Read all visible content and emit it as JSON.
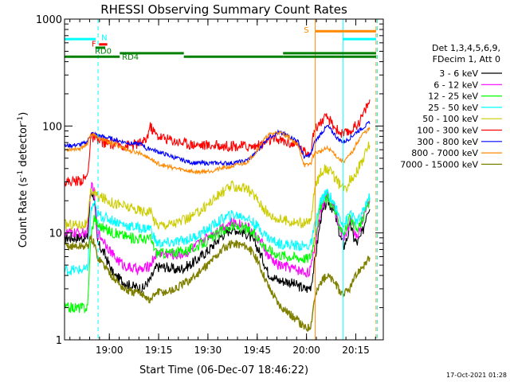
{
  "chart_data": {
    "type": "line",
    "title": "RHESSI Observing Summary Count Rates",
    "ylabel_main": "Count Rate (s",
    "ylabel_sup1": "-1",
    "ylabel_mid": " detector",
    "ylabel_sup2": "-1",
    "ylabel_end": ")",
    "xlabel": "Start Time (06-Dec-07 18:46:22)",
    "timestamp": "17-Oct-2021 01:28",
    "yscale": "log",
    "ylim": [
      1,
      1000
    ],
    "xlim_minutes": [
      0,
      97
    ],
    "x_ticks": [
      {
        "m": 13.63,
        "label": "19:00"
      },
      {
        "m": 28.63,
        "label": "19:15"
      },
      {
        "m": 43.63,
        "label": "19:30"
      },
      {
        "m": 58.63,
        "label": "19:45"
      },
      {
        "m": 73.63,
        "label": "20:00"
      },
      {
        "m": 88.63,
        "label": "20:15"
      }
    ],
    "y_ticks": [
      {
        "v": 1,
        "label": "1"
      },
      {
        "v": 10,
        "label": "10"
      },
      {
        "v": 100,
        "label": "100"
      },
      {
        "v": 1000,
        "label": "1000"
      }
    ],
    "legend_header": [
      "Det 1,3,4,5,6,9,",
      "FDecim 1, Att 0"
    ],
    "series": [
      {
        "name": "3 - 6 keV",
        "color": "#000000",
        "x": [
          0,
          5,
          6,
          7,
          8,
          9,
          10,
          12,
          15,
          18,
          20,
          24,
          25,
          26,
          28,
          31,
          34,
          36,
          38,
          40,
          44,
          48,
          51,
          55,
          56,
          58,
          60,
          62,
          65,
          68,
          71,
          73,
          74,
          75,
          76,
          78,
          80,
          82,
          83,
          84,
          85,
          86,
          87,
          88,
          89,
          90,
          91,
          92,
          93
        ],
        "y": [
          9,
          9,
          9,
          9,
          25,
          22,
          8,
          6.5,
          4,
          3.5,
          3.2,
          3,
          3.4,
          3.6,
          4.8,
          4.8,
          4.5,
          4.7,
          5,
          5.5,
          7,
          9.5,
          11,
          10,
          9.5,
          8,
          6,
          4.2,
          3.6,
          3.5,
          3.2,
          3,
          3,
          3.2,
          5,
          14,
          20,
          16,
          12,
          9,
          7.5,
          9,
          12,
          9,
          8,
          9,
          11,
          16,
          18
        ]
      },
      {
        "name": "6 - 12 keV",
        "color": "#ff00ff",
        "x": [
          0,
          5,
          6,
          7,
          8,
          9,
          10,
          12,
          15,
          18,
          20,
          24,
          25,
          26,
          28,
          31,
          34,
          36,
          38,
          40,
          44,
          48,
          51,
          55,
          56,
          58,
          60,
          62,
          65,
          68,
          71,
          73,
          74,
          75,
          76,
          78,
          80,
          82,
          83,
          84,
          85,
          86,
          87,
          88,
          89,
          90,
          91,
          92,
          93
        ],
        "y": [
          10,
          10,
          10,
          10,
          28,
          24,
          10,
          8.5,
          6,
          5,
          4.7,
          4.5,
          4.8,
          5,
          6.5,
          6.4,
          6.2,
          6.4,
          6.7,
          7.5,
          9.5,
          11.5,
          12.5,
          11.8,
          11.2,
          9.5,
          8,
          6,
          5,
          4.8,
          4.5,
          4.3,
          4.3,
          4.6,
          7,
          17,
          23,
          18,
          13.5,
          10.5,
          9,
          10.5,
          13.5,
          10.5,
          9.5,
          11,
          14,
          18,
          20
        ]
      },
      {
        "name": "12 - 25 keV",
        "color": "#00ff00",
        "x": [
          0,
          5,
          6,
          7,
          8,
          9,
          10,
          12,
          15,
          18,
          20,
          24,
          25,
          26,
          28,
          31,
          34,
          36,
          38,
          40,
          44,
          48,
          51,
          55,
          56,
          58,
          60,
          62,
          65,
          68,
          71,
          73,
          74,
          75,
          76,
          78,
          80,
          82,
          83,
          84,
          85,
          86,
          87,
          88,
          89,
          90,
          91,
          92,
          93
        ],
        "y": [
          2,
          2,
          2,
          2,
          9,
          14,
          12,
          11,
          10,
          9.5,
          9,
          8.8,
          8.8,
          9,
          6.5,
          6.5,
          6.6,
          6.8,
          7,
          7.4,
          8.6,
          10.5,
          11.5,
          11,
          10.5,
          9.5,
          8.2,
          7,
          6.3,
          6.1,
          5.9,
          5.8,
          5.8,
          6.2,
          9,
          18,
          22,
          17,
          13.5,
          11.5,
          10,
          11.5,
          14,
          11.5,
          10.5,
          12,
          14,
          18,
          20
        ]
      },
      {
        "name": "25 - 50 keV",
        "color": "#00ffff",
        "x": [
          0,
          5,
          6,
          7,
          8,
          9,
          10,
          12,
          15,
          18,
          20,
          24,
          25,
          26,
          28,
          31,
          34,
          36,
          38,
          40,
          44,
          48,
          51,
          55,
          56,
          58,
          60,
          62,
          65,
          68,
          71,
          73,
          74,
          75,
          76,
          78,
          80,
          82,
          83,
          84,
          85,
          86,
          87,
          88,
          89,
          90,
          91,
          92,
          93
        ],
        "y": [
          4.5,
          4.5,
          4.5,
          4.5,
          16,
          19,
          15,
          14,
          13,
          12,
          11.5,
          11,
          11,
          11.2,
          8,
          8,
          8.2,
          8.5,
          8.8,
          9.3,
          11,
          13.5,
          14.8,
          14.2,
          13.5,
          12,
          10.5,
          9,
          8,
          7.8,
          7.6,
          7.5,
          7.5,
          7.8,
          11,
          20,
          24,
          19,
          15.5,
          13.5,
          12,
          13.5,
          16,
          13.5,
          12.5,
          14,
          16,
          20,
          22
        ]
      },
      {
        "name": "50 - 100 keV",
        "color": "#cccc00",
        "x": [
          0,
          5,
          6,
          7,
          8,
          9,
          10,
          12,
          15,
          18,
          20,
          24,
          25,
          26,
          28,
          31,
          34,
          36,
          38,
          40,
          44,
          48,
          51,
          55,
          56,
          58,
          60,
          62,
          65,
          68,
          71,
          73,
          74,
          75,
          76,
          78,
          80,
          82,
          83,
          84,
          85,
          86,
          87,
          88,
          89,
          90,
          91,
          92,
          93
        ],
        "y": [
          12,
          12,
          12,
          12,
          25,
          24,
          22,
          21,
          19,
          18,
          17,
          16,
          16,
          16.2,
          12,
          12,
          12.5,
          13,
          13.8,
          15,
          19,
          24,
          27.5,
          26,
          25,
          22,
          18,
          15,
          13.5,
          13,
          12.5,
          12.3,
          12.3,
          13,
          25,
          38,
          40,
          34,
          30,
          27.5,
          26,
          27.5,
          32,
          34,
          38,
          44,
          50,
          60,
          68
        ]
      },
      {
        "name": "100 - 300 keV",
        "color": "#ff0000",
        "x": [
          0,
          5,
          6,
          7,
          8,
          9,
          10,
          12,
          15,
          18,
          20,
          24,
          25,
          26,
          28,
          31,
          34,
          36,
          38,
          40,
          44,
          48,
          51,
          55,
          56,
          58,
          60,
          62,
          65,
          68,
          71,
          73,
          74,
          75,
          76,
          78,
          80,
          82,
          83,
          84,
          85,
          86,
          87,
          88,
          89,
          90,
          91,
          92,
          93
        ],
        "y": [
          30,
          31,
          32,
          34,
          80,
          76,
          72,
          70,
          67,
          66,
          66,
          70,
          76,
          100,
          82,
          76,
          72,
          70,
          68,
          67,
          66,
          65.5,
          65,
          65,
          64,
          65,
          67,
          73,
          75,
          70,
          66,
          57,
          57,
          59,
          93,
          110,
          120,
          100,
          92,
          86,
          84,
          86,
          90,
          96,
          104,
          115,
          130,
          155,
          170
        ]
      },
      {
        "name": "300 - 800 keV",
        "color": "#0000ff",
        "x": [
          0,
          5,
          6,
          7,
          8,
          9,
          10,
          12,
          15,
          18,
          20,
          24,
          25,
          26,
          28,
          31,
          34,
          36,
          38,
          40,
          44,
          48,
          51,
          55,
          56,
          58,
          60,
          62,
          65,
          68,
          71,
          73,
          74,
          75,
          76,
          78,
          80,
          82,
          83,
          84,
          85,
          86,
          87,
          88,
          89,
          90,
          91,
          92,
          93
        ],
        "y": [
          65,
          67,
          69,
          72,
          86,
          84,
          82,
          79,
          75,
          71,
          69,
          67,
          60,
          62,
          58,
          54,
          50,
          48,
          46,
          45,
          45,
          45,
          45,
          47,
          49,
          55,
          66,
          78,
          87,
          82,
          72,
          51,
          52,
          55,
          69,
          85,
          100,
          85,
          77,
          73,
          71,
          74,
          78,
          83,
          89,
          92,
          98,
          102,
          110
        ]
      },
      {
        "name": "800 - 7000 keV",
        "color": "#ff8800",
        "x": [
          0,
          5,
          6,
          7,
          8,
          9,
          10,
          12,
          15,
          18,
          20,
          24,
          25,
          26,
          28,
          31,
          34,
          36,
          38,
          40,
          44,
          48,
          51,
          55,
          56,
          58,
          60,
          62,
          65,
          68,
          71,
          73,
          74,
          75,
          76,
          78,
          80,
          82,
          83,
          84,
          85,
          86,
          87,
          88,
          89,
          90,
          91,
          92,
          93
        ],
        "y": [
          60,
          62,
          65,
          70,
          84,
          82,
          78,
          74,
          68,
          62,
          58,
          55,
          51,
          50,
          45,
          42,
          40,
          39,
          38,
          37,
          38,
          40,
          42,
          45,
          48,
          56,
          70,
          82,
          88,
          80,
          66,
          43,
          43,
          45,
          56,
          58,
          62,
          56,
          51,
          48,
          47,
          50,
          54,
          60,
          70,
          78,
          86,
          90,
          95
        ]
      },
      {
        "name": "7000 - 15000 keV",
        "color": "#808000",
        "x": [
          0,
          5,
          6,
          7,
          8,
          9,
          10,
          12,
          15,
          18,
          20,
          24,
          25,
          26,
          28,
          31,
          34,
          36,
          38,
          40,
          44,
          48,
          51,
          55,
          56,
          58,
          60,
          62,
          65,
          68,
          71,
          73,
          74,
          75,
          76,
          78,
          80,
          82,
          83,
          84,
          85,
          86,
          87,
          88,
          89,
          90,
          91,
          92,
          93
        ],
        "y": [
          7.5,
          7.5,
          7.5,
          7.5,
          9,
          8,
          6,
          5,
          3.8,
          3,
          2.8,
          2.7,
          2.5,
          2.3,
          2.8,
          2.8,
          3,
          3.3,
          3.6,
          4,
          5.2,
          7,
          8,
          7.6,
          7.2,
          6,
          4.5,
          3.2,
          2.2,
          1.8,
          1.5,
          1.3,
          1.3,
          1.4,
          2.4,
          3.5,
          4,
          3.5,
          3.1,
          2.8,
          2.7,
          2.8,
          3.1,
          3.6,
          4.1,
          4.6,
          5,
          5.4,
          5.8
        ]
      }
    ],
    "vertical_lines": [
      {
        "m": 10.2,
        "color": "#00ffff",
        "style": "dashed"
      },
      {
        "m": 76.3,
        "color": "#ff8800",
        "style": "solid"
      },
      {
        "m": 84.7,
        "color": "#00ffff",
        "style": "solid"
      },
      {
        "m": 94.8,
        "color": "#ff8800",
        "style": "dashed"
      },
      {
        "m": 95.2,
        "color": "#00ffff",
        "style": "dashed"
      }
    ],
    "flag_bars": [
      {
        "label": "N",
        "color": "#00ffff",
        "y": 650,
        "segments": [
          [
            0,
            9.5
          ],
          [
            84.7,
            94.8
          ]
        ],
        "label_m": 11.2,
        "label_y": 680
      },
      {
        "label": "S",
        "color": "#ff8800",
        "y": 770,
        "segments": [
          [
            76.3,
            94.8
          ]
        ],
        "label_m": 72.8,
        "label_y": 800
      },
      {
        "label": "F",
        "color": "#ff0000",
        "y": 580,
        "segments": [
          [
            10.5,
            13
          ]
        ],
        "label_m": 8.2,
        "label_y": 595
      },
      {
        "label": "RD0",
        "color": "#008000",
        "y": 540,
        "segments": [
          [
            9.4,
            12.4
          ]
        ],
        "label_m": 9.2,
        "label_y": 510
      },
      {
        "label": "RD4",
        "color": "#008000",
        "y": 445,
        "segments": [
          [
            0,
            16.8
          ],
          [
            36.3,
            66.5
          ],
          [
            66.5,
            94.8
          ]
        ],
        "label_m": 17.5,
        "label_y": 445
      },
      {
        "label": "",
        "color": "#008000",
        "y": 480,
        "segments": [
          [
            16.8,
            36.3
          ],
          [
            66.5,
            94.8
          ]
        ],
        "label_m": 0,
        "label_y": 0
      }
    ]
  }
}
